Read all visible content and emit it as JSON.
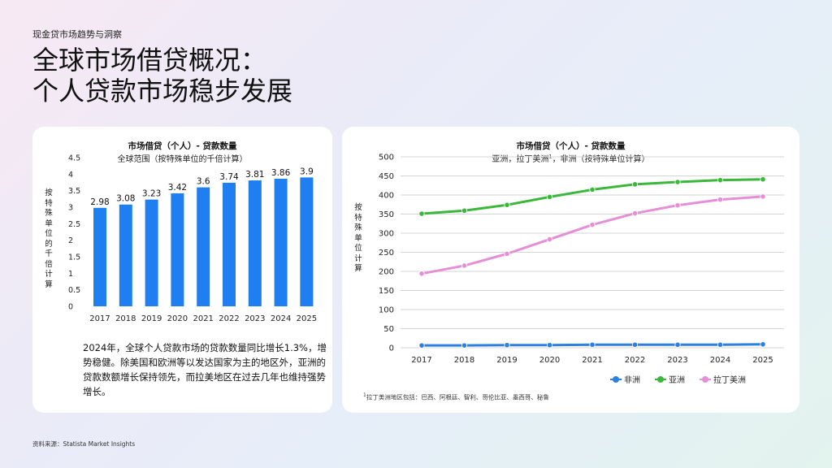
{
  "header": {
    "eyebrow": "现金贷市场趋势与洞察",
    "title_line1": "全球市场借贷概况：",
    "title_line2": "个人贷款市场稳步发展"
  },
  "left_card": {
    "description": "2024年，全球个人贷款市场的贷款数量同比增长1.3%，增势稳健。除美国和欧洲等以发达国家为主的地区外，亚洲的贷款数额增长保持领先，而拉美地区在过去几年也维持强势增长。"
  },
  "right_card": {
    "footnote_mark": "1",
    "footnote": "拉丁美洲地区包括：巴西、阿根廷、智利、哥伦比亚、墨西哥、秘鲁"
  },
  "source": "资料来源：Statista Market Insights",
  "chart_data": [
    {
      "type": "bar",
      "title": "市场借贷（个人）- 贷款数量",
      "subtitle": "全球范围（按特殊单位的千倍计算）",
      "ylabel": "按特殊单位的千倍计算",
      "categories": [
        "2017",
        "2018",
        "2019",
        "2020",
        "2021",
        "2022",
        "2023",
        "2024",
        "2025"
      ],
      "values": [
        2.98,
        3.08,
        3.23,
        3.42,
        3.6,
        3.74,
        3.81,
        3.86,
        3.9
      ],
      "value_labels": [
        "2.98",
        "3.08",
        "3.23",
        "3.42",
        "3.6",
        "3.74",
        "3.81",
        "3.86",
        "3.9"
      ],
      "yticks": [
        "0",
        "0.5",
        "1",
        "1.5",
        "2",
        "2.5",
        "3",
        "3.5",
        "4",
        "4.5"
      ],
      "ylim": [
        0,
        4.5
      ],
      "color": "#1f7ff0"
    },
    {
      "type": "line",
      "title": "市场借贷（个人）- 贷款数量",
      "subtitle_prefix": "亚洲，拉丁美洲",
      "subtitle_sup": "1",
      "subtitle_suffix": "，非洲（按特殊单位计算）",
      "ylabel": "按特殊单位计算",
      "x": [
        "2017",
        "2018",
        "2019",
        "2020",
        "2021",
        "2022",
        "2023",
        "2024",
        "2025"
      ],
      "yticks": [
        "0",
        "50",
        "100",
        "150",
        "200",
        "250",
        "300",
        "350",
        "400",
        "450",
        "500"
      ],
      "ylim": [
        0,
        500
      ],
      "series": [
        {
          "name": "非洲",
          "color": "#2d7fe0",
          "values": [
            6,
            6,
            7,
            7,
            8,
            8,
            8,
            8,
            9
          ]
        },
        {
          "name": "亚洲",
          "color": "#3bb83b",
          "values": [
            351,
            359,
            374,
            395,
            414,
            428,
            434,
            439,
            441
          ]
        },
        {
          "name": "拉丁美洲",
          "color": "#e48fd6",
          "values": [
            194,
            215,
            246,
            284,
            322,
            352,
            373,
            388,
            396
          ]
        }
      ]
    }
  ]
}
